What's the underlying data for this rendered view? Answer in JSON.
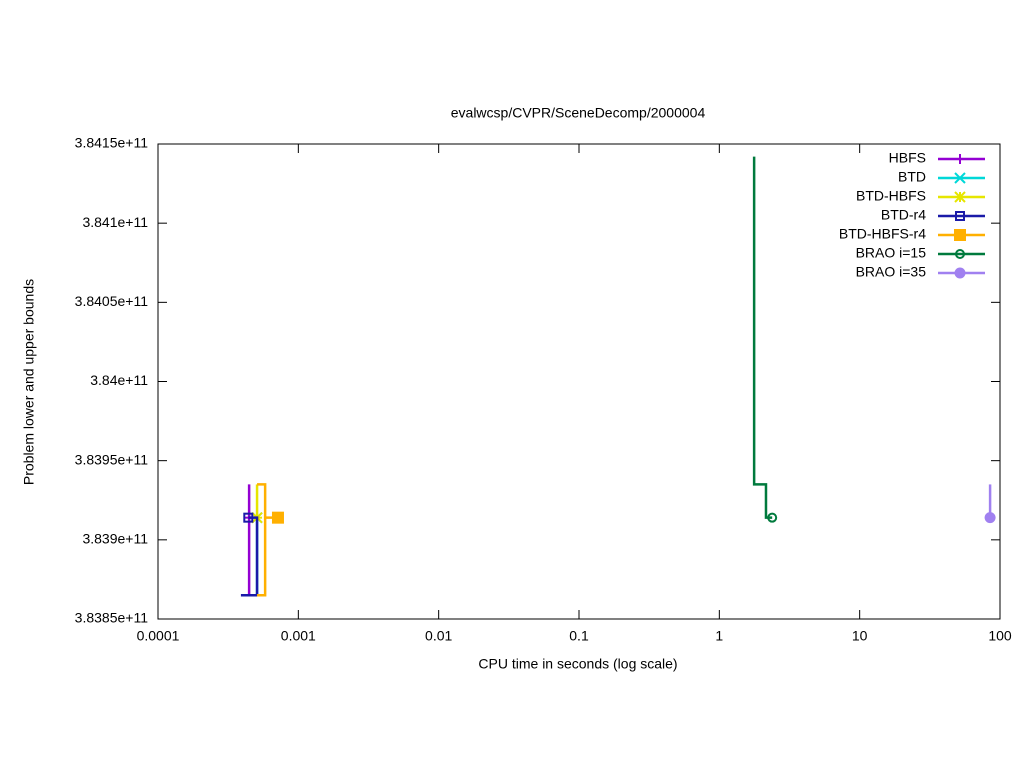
{
  "chart_data": {
    "type": "line",
    "title": "evalwcsp/CVPR/SceneDecomp/2000004",
    "xlabel": "CPU time in seconds (log scale)",
    "ylabel": "Problem lower and upper bounds",
    "xlog": true,
    "legend": "top-right",
    "xlim": [
      0.0001,
      100
    ],
    "xticks": [
      0.0001,
      0.001,
      0.01,
      0.1,
      1,
      10,
      100
    ],
    "ylim": [
      383850000000,
      384150000000
    ],
    "yticks": [
      {
        "value": 383850000000,
        "label": "3.8385e+11"
      },
      {
        "value": 383900000000,
        "label": "3.839e+11"
      },
      {
        "value": 383950000000,
        "label": "3.8395e+11"
      },
      {
        "value": 384000000000,
        "label": "3.84e+11"
      },
      {
        "value": 384050000000,
        "label": "3.8405e+11"
      },
      {
        "value": 384100000000,
        "label": "3.841e+11"
      },
      {
        "value": 384150000000,
        "label": "3.8415e+11"
      }
    ],
    "series": [
      {
        "name": "HBFS",
        "color": "#9400d3",
        "marker": "plus",
        "x": [
          0.00039,
          0.000446,
          0.000446,
          0.000446
        ],
        "values": [
          383865000000,
          383865000000,
          383935000000,
          383914000000
        ]
      },
      {
        "name": "BTD",
        "color": "#00d8d8",
        "marker": "cross",
        "x": [
          0.000508,
          0.000508
        ],
        "values": [
          383865000000,
          383914000000
        ]
      },
      {
        "name": "BTD-HBFS",
        "color": "#e6e600",
        "marker": "star",
        "x": [
          0.000508,
          0.000508
        ],
        "values": [
          383935000000,
          383914000000
        ]
      },
      {
        "name": "BTD-r4",
        "color": "#1a1aa8",
        "marker": "square",
        "x": [
          0.00039,
          0.000508,
          0.000508,
          0.00044
        ],
        "values": [
          383865000000,
          383865000000,
          383914000000,
          383914000000
        ]
      },
      {
        "name": "BTD-HBFS-r4",
        "color": "#ffb000",
        "marker": "filled-square",
        "x": [
          0.000508,
          0.00058,
          0.00058,
          0.000508,
          0.00058,
          0.00058,
          0.000716
        ],
        "values": [
          383865000000,
          383865000000,
          383935000000,
          383935000000,
          383935000000,
          383914000000,
          383914000000
        ]
      },
      {
        "name": "BRAO i=15",
        "color": "#007a3d",
        "marker": "circle",
        "x": [
          1.77,
          1.77,
          2.15,
          2.15,
          2.38
        ],
        "values": [
          384142000000,
          383935000000,
          383935000000,
          383914000000,
          383914000000
        ]
      },
      {
        "name": "BRAO i=35",
        "color": "#a080f0",
        "marker": "filled-circle",
        "x": [
          85,
          85
        ],
        "values": [
          383935000000,
          383914000000
        ]
      }
    ]
  }
}
